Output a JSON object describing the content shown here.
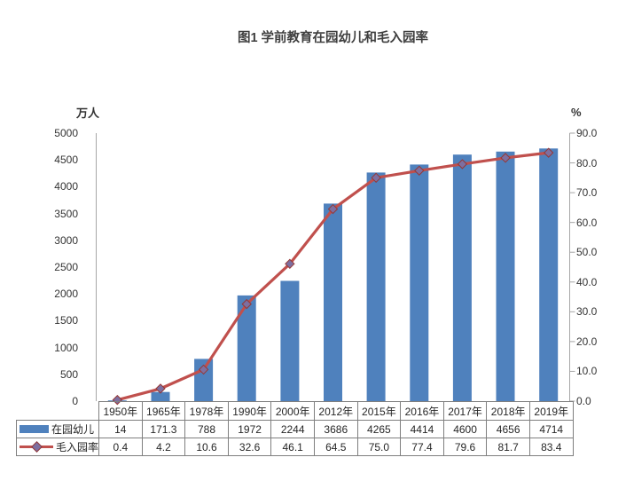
{
  "title": "图1 学前教育在园幼儿和毛入园率",
  "chart_data": {
    "type": "combo",
    "title": "图1 学前教育在园幼儿和毛入园率",
    "categories": [
      "1950年",
      "1965年",
      "1978年",
      "1990年",
      "2000年",
      "2012年",
      "2015年",
      "2016年",
      "2017年",
      "2018年",
      "2019年"
    ],
    "series": [
      {
        "name": "在园幼儿",
        "type": "bar",
        "axis": "left",
        "unit": "万人",
        "color": "#4F81BD",
        "values": [
          14,
          171.3,
          788,
          1972,
          2244,
          3686,
          4265,
          4414,
          4600,
          4656,
          4714
        ]
      },
      {
        "name": "毛入园率",
        "type": "line",
        "axis": "right",
        "unit": "%",
        "color": "#C0504D",
        "marker": "diamond",
        "marker_color": "#7D6FA0",
        "marker_border": "#953735",
        "values": [
          0.4,
          4.2,
          10.6,
          32.6,
          46.1,
          64.5,
          75.0,
          77.4,
          79.6,
          81.7,
          83.4
        ]
      }
    ],
    "left_axis": {
      "unit_label": "万人",
      "min": 0,
      "max": 5000,
      "step": 500,
      "ticks": [
        "5000",
        "4500",
        "4000",
        "3500",
        "3000",
        "2500",
        "2000",
        "1500",
        "1000",
        "500",
        "0"
      ]
    },
    "right_axis": {
      "unit_label": "%",
      "min": 0,
      "max": 90,
      "step": 10,
      "ticks": [
        "90.0",
        "80.0",
        "70.0",
        "60.0",
        "50.0",
        "40.0",
        "30.0",
        "20.0",
        "10.0",
        "0.0"
      ]
    },
    "grid": false,
    "legend_position": "data-table-left"
  },
  "data_table": {
    "column_headers": [
      "1950年",
      "1965年",
      "1978年",
      "1990年",
      "2000年",
      "2012年",
      "2015年",
      "2016年",
      "2017年",
      "2018年",
      "2019年"
    ],
    "rows": [
      {
        "label": "在园幼儿",
        "swatch": "bar",
        "values": [
          "14",
          "171.3",
          "788",
          "1972",
          "2244",
          "3686",
          "4265",
          "4414",
          "4600",
          "4656",
          "4714"
        ]
      },
      {
        "label": "毛入园率",
        "swatch": "line",
        "values": [
          "0.4",
          "4.2",
          "10.6",
          "32.6",
          "46.1",
          "64.5",
          "75.0",
          "77.4",
          "79.6",
          "81.7",
          "83.4"
        ]
      }
    ]
  },
  "colors": {
    "bar": "#4F81BD",
    "line": "#C0504D",
    "marker_fill": "#7D6FA0",
    "marker_border": "#953735",
    "axis_line": "#A6A6A6",
    "table_border": "#7F7F7F",
    "text": "#333333",
    "title_text": "#3F3F3F"
  }
}
